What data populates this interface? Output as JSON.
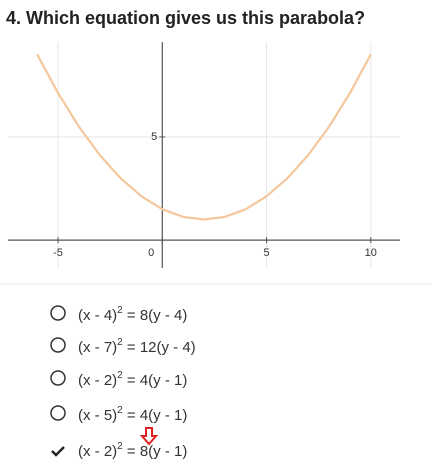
{
  "question": "4. Which equation gives us this parabola?",
  "chart_data": {
    "type": "line",
    "x": [
      -6,
      -5,
      -4,
      -3,
      -2,
      -1,
      0,
      1,
      2,
      3,
      4,
      5,
      6,
      7,
      8,
      9,
      10
    ],
    "series": [
      {
        "color": "#f6c79c",
        "values": [
          9,
          7.125,
          5.5,
          4.125,
          3,
          2.125,
          1.5,
          1.125,
          1,
          1.125,
          1.5,
          2.125,
          3,
          4.125,
          5.5,
          7.125,
          9
        ]
      }
    ],
    "xlim": [
      -7.4,
      11.4
    ],
    "ylim": [
      -1.35,
      9.6
    ],
    "xticks": [
      -5,
      0,
      5,
      10
    ],
    "yticks": [
      5
    ],
    "grid": true
  },
  "options": [
    {
      "left": "(x - 4)",
      "power": "2",
      "right": " = 8(y - 4)",
      "checked": false
    },
    {
      "left": "(x - 7)",
      "power": "2",
      "right": " = 12(y - 4)",
      "checked": false
    },
    {
      "left": "(x - 2)",
      "power": "2",
      "right": " = 4(y - 1)",
      "checked": false
    },
    {
      "left": "(x - 5)",
      "power": "2",
      "right": " = 4(y - 1)",
      "checked": false
    },
    {
      "left": "(x - 2)",
      "power": "2",
      "right": " = 8(y - 1)",
      "checked": true
    }
  ]
}
